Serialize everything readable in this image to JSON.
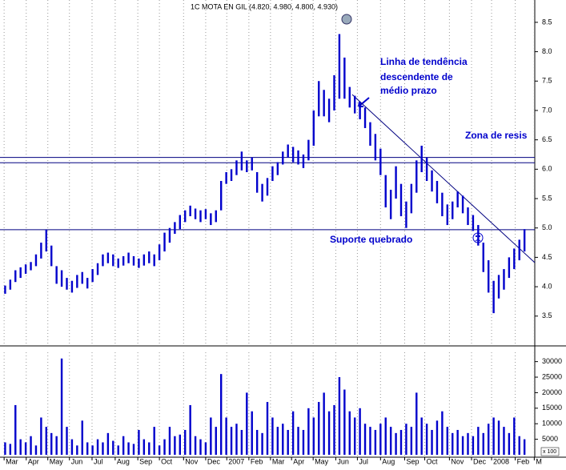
{
  "chart_data": [
    {
      "type": "ohlc",
      "title": "1C MOTA EN GIL (4.820, 4.980, 4.800, 4.930)",
      "color": "#0000cc",
      "x": [
        0,
        1,
        2,
        3,
        4,
        5,
        6,
        7,
        8,
        9,
        10,
        11,
        12,
        13,
        14,
        15,
        16,
        17,
        18,
        19,
        20,
        21,
        22,
        23,
        24,
        25,
        26,
        27,
        28,
        29,
        30,
        31,
        32,
        33,
        34,
        35,
        36,
        37,
        38,
        39,
        40,
        41,
        42,
        43,
        44,
        45,
        46,
        47,
        48,
        49,
        50,
        51,
        52,
        53,
        54,
        55,
        56,
        57,
        58,
        59,
        60,
        61,
        62,
        63,
        64,
        65,
        66,
        67,
        68,
        69,
        70,
        71,
        72,
        73,
        74,
        75,
        76,
        77,
        78,
        79,
        80,
        81,
        82,
        83,
        84,
        85,
        86,
        87,
        88,
        89,
        90,
        91,
        92,
        93,
        94,
        95,
        96,
        97,
        98,
        99,
        100,
        101
      ],
      "high": [
        4.02,
        4.12,
        4.28,
        4.33,
        4.38,
        4.42,
        4.55,
        4.75,
        4.97,
        4.7,
        4.35,
        4.28,
        4.15,
        4.1,
        4.2,
        4.25,
        4.15,
        4.3,
        4.4,
        4.55,
        4.58,
        4.55,
        4.48,
        4.52,
        4.58,
        4.52,
        4.48,
        4.55,
        4.6,
        4.55,
        4.72,
        4.92,
        5.0,
        5.1,
        5.22,
        5.3,
        5.38,
        5.33,
        5.3,
        5.32,
        5.25,
        5.3,
        5.8,
        5.95,
        6.0,
        6.15,
        6.3,
        6.15,
        6.2,
        5.95,
        5.75,
        5.85,
        6.05,
        6.12,
        6.3,
        6.42,
        6.38,
        6.32,
        6.25,
        6.5,
        7.0,
        7.5,
        7.35,
        7.2,
        7.6,
        8.3,
        7.9,
        7.4,
        7.25,
        7.15,
        7.05,
        6.8,
        6.6,
        6.35,
        5.9,
        5.65,
        6.05,
        5.75,
        5.45,
        5.75,
        6.15,
        6.4,
        6.2,
        5.98,
        5.8,
        5.6,
        5.4,
        5.45,
        5.62,
        5.55,
        5.35,
        5.22,
        5.05,
        4.75,
        4.45,
        4.1,
        4.2,
        4.3,
        4.5,
        4.65,
        4.8,
        4.98
      ],
      "low": [
        3.88,
        3.95,
        4.08,
        4.15,
        4.22,
        4.28,
        4.35,
        4.48,
        4.6,
        4.35,
        4.05,
        4.0,
        3.95,
        3.9,
        3.98,
        4.05,
        3.97,
        4.08,
        4.2,
        4.35,
        4.4,
        4.35,
        4.32,
        4.36,
        4.4,
        4.36,
        4.32,
        4.36,
        4.4,
        4.35,
        4.45,
        4.6,
        4.75,
        4.9,
        4.98,
        5.1,
        5.2,
        5.15,
        5.1,
        5.15,
        5.05,
        5.1,
        5.3,
        5.75,
        5.8,
        5.9,
        5.98,
        5.95,
        5.98,
        5.6,
        5.45,
        5.55,
        5.8,
        5.9,
        6.08,
        6.2,
        6.12,
        6.08,
        6.02,
        6.15,
        6.4,
        6.9,
        6.9,
        6.8,
        7.0,
        7.2,
        7.2,
        7.05,
        6.95,
        6.85,
        6.7,
        6.4,
        6.15,
        5.9,
        5.35,
        5.15,
        5.5,
        5.2,
        5.0,
        5.25,
        5.6,
        5.95,
        5.8,
        5.62,
        5.42,
        5.2,
        5.05,
        5.15,
        5.35,
        5.25,
        5.05,
        4.95,
        4.7,
        4.25,
        3.9,
        3.55,
        3.8,
        3.95,
        4.15,
        4.3,
        4.45,
        4.6
      ],
      "xlim": [
        -1,
        103
      ],
      "ylim": [
        3.02,
        8.88
      ],
      "yticks": [
        {
          "value": 3.5,
          "label": "3.5"
        },
        {
          "value": 4,
          "label": "4.0"
        },
        {
          "value": 4.5,
          "label": "4.5"
        },
        {
          "value": 5,
          "label": "5.0"
        },
        {
          "value": 5.5,
          "label": "5.5"
        },
        {
          "value": 6,
          "label": "6.0"
        },
        {
          "value": 6.5,
          "label": "6.5"
        },
        {
          "value": 7,
          "label": "7.0"
        },
        {
          "value": 7.5,
          "label": "7.5"
        },
        {
          "value": 8,
          "label": "8.0"
        },
        {
          "value": 8.5,
          "label": "8.5"
        }
      ],
      "hlines": [
        6.2,
        6.11,
        4.97
      ],
      "trendline": {
        "x": [
          67.5,
          103
        ],
        "y": [
          7.27,
          4.41
        ]
      },
      "annotations": [
        "Linha de tendência",
        "descendente de",
        "médio prazo",
        "Zona de resis",
        "Suporte quebrado"
      ],
      "grid": true
    },
    {
      "type": "bar",
      "color": "#0000cc",
      "x": [
        0,
        1,
        2,
        3,
        4,
        5,
        6,
        7,
        8,
        9,
        10,
        11,
        12,
        13,
        14,
        15,
        16,
        17,
        18,
        19,
        20,
        21,
        22,
        23,
        24,
        25,
        26,
        27,
        28,
        29,
        30,
        31,
        32,
        33,
        34,
        35,
        36,
        37,
        38,
        39,
        40,
        41,
        42,
        43,
        44,
        45,
        46,
        47,
        48,
        49,
        50,
        51,
        52,
        53,
        54,
        55,
        56,
        57,
        58,
        59,
        60,
        61,
        62,
        63,
        64,
        65,
        66,
        67,
        68,
        69,
        70,
        71,
        72,
        73,
        74,
        75,
        76,
        77,
        78,
        79,
        80,
        81,
        82,
        83,
        84,
        85,
        86,
        87,
        88,
        89,
        90,
        91,
        92,
        93,
        94,
        95,
        96,
        97,
        98,
        99,
        100,
        101
      ],
      "values": [
        4000,
        3500,
        16000,
        5000,
        4000,
        6000,
        3000,
        12000,
        9000,
        7000,
        6000,
        31000,
        9000,
        5000,
        3000,
        11000,
        4000,
        3000,
        5000,
        4000,
        7000,
        4500,
        3000,
        6000,
        4000,
        3500,
        8000,
        5000,
        4000,
        9000,
        3000,
        5000,
        9000,
        6000,
        6500,
        8000,
        16000,
        6000,
        5000,
        4000,
        12000,
        9000,
        26000,
        12000,
        9000,
        10000,
        8000,
        20000,
        14000,
        8000,
        7000,
        17000,
        12000,
        9000,
        10000,
        8000,
        14000,
        9000,
        8000,
        15000,
        12000,
        17000,
        20000,
        14000,
        16000,
        25000,
        21000,
        14000,
        12000,
        15000,
        10000,
        9000,
        8000,
        10000,
        12000,
        9000,
        7000,
        8000,
        10000,
        9000,
        20000,
        12000,
        10000,
        8000,
        11000,
        14000,
        9000,
        7000,
        8000,
        6000,
        7000,
        6000,
        9000,
        7000,
        10000,
        12000,
        11000,
        9000,
        7000,
        12000,
        6000,
        5000
      ],
      "xlim": [
        -1,
        103
      ],
      "ylim": [
        0,
        33000
      ],
      "yticks": [
        5000,
        10000,
        15000,
        20000,
        25000,
        30000
      ],
      "scale_label": "x 100",
      "xticks": [
        {
          "value": -0.2,
          "label": "Mar"
        },
        {
          "value": 4.1,
          "label": "Apr"
        },
        {
          "value": 8.3,
          "label": "May"
        },
        {
          "value": 12.5,
          "label": "Jun"
        },
        {
          "value": 16.9,
          "label": "Jul"
        },
        {
          "value": 21.4,
          "label": "Aug"
        },
        {
          "value": 25.8,
          "label": "Sep"
        },
        {
          "value": 30,
          "label": "Oct"
        },
        {
          "value": 34.7,
          "label": "Nov"
        },
        {
          "value": 39,
          "label": "Dec"
        },
        {
          "value": 43.1,
          "label": "2007"
        },
        {
          "value": 47.4,
          "label": "Feb"
        },
        {
          "value": 51.6,
          "label": "Mar"
        },
        {
          "value": 55.7,
          "label": "Apr"
        },
        {
          "value": 59.9,
          "label": "May"
        },
        {
          "value": 64.3,
          "label": "Jun"
        },
        {
          "value": 68.5,
          "label": "Jul"
        },
        {
          "value": 73,
          "label": "Aug"
        },
        {
          "value": 77.7,
          "label": "Sep"
        },
        {
          "value": 81.6,
          "label": "Oct"
        },
        {
          "value": 86.4,
          "label": "Nov"
        },
        {
          "value": 90.7,
          "label": "Dec"
        },
        {
          "value": 94.6,
          "label": "2008"
        },
        {
          "value": 99.2,
          "label": "Feb"
        },
        {
          "value": 102.9,
          "label": "M"
        }
      ],
      "grid": true
    }
  ]
}
